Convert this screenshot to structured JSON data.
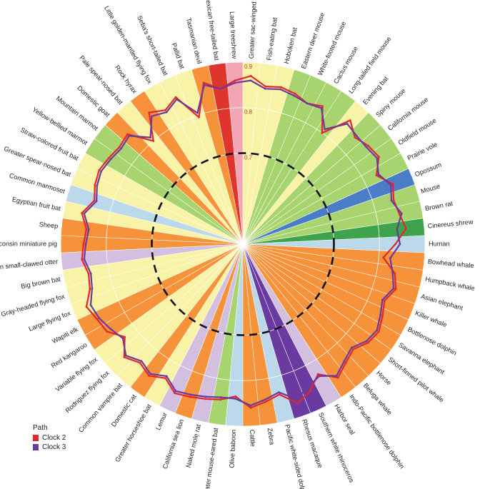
{
  "chart_data": {
    "type": "radar",
    "title": "",
    "r_axis": {
      "min": 0.5,
      "max": 0.9,
      "ticks": [
        0.7,
        0.8,
        0.9
      ],
      "tick_labels": [
        "0.7",
        "0.8",
        "0.9"
      ]
    },
    "reference_ring": 0.7,
    "legend": {
      "title": "Path",
      "placement": "bottom-left",
      "entries": [
        {
          "label": "Clock 2",
          "color": "#e3262d"
        },
        {
          "label": "Clock 3",
          "color": "#6a3a9c"
        }
      ]
    },
    "colors": {
      "orange": "#f5923a",
      "yellow": "#f8f3a6",
      "green": "#a8d46f",
      "lightblue": "#bcd9ec",
      "lavender": "#d3bfe0",
      "purple": "#6a3aa0",
      "red": "#e0352d",
      "pink": "#f2a6b4",
      "darkgreen": "#3fa34d",
      "blue": "#4a7cc7"
    },
    "categories": [
      "Human",
      "Cinereus shrew",
      "Brown rat",
      "Mouse",
      "Opossum",
      "Prairie vole",
      "Oldfield mouse",
      "California mouse",
      "Spiny mouse",
      "Evening bat",
      "Long-tailed field mouse",
      "Cactus mouse",
      "White-footed mouse",
      "Eastern deer mouse",
      "Hoboken bat",
      "Fish-eating bat",
      "Greater sac-winged bat",
      "Large treeshrew",
      "Mexican free-tailed bat",
      "Tasmanian devil",
      "Pallid bat",
      "Seba's short-tailed bat",
      "Little golden-mantled flying fox",
      "Rock hyrax",
      "Pale spear-nosed bat",
      "Domestic goat",
      "Mountain marmot",
      "Yellow-bellied marmot",
      "Straw-colored fruit bat",
      "Greater spear-nosed bat",
      "Common marmoset",
      "Egyptian fruit bat",
      "Sheep",
      "Wisconsin miniature pig",
      "Asian small-clawed otter",
      "Big brown bat",
      "Gray-headed flying fox",
      "Large flying fox",
      "Wapiti elk",
      "Red kangaroo",
      "Variable flying fox",
      "Rodriguez flying fox",
      "Common vampire bat",
      "Domestic cat",
      "Greater horseshoe bat",
      "Lemur",
      "California sea lion",
      "Naked mole rat",
      "Greater mouse-eared bat",
      "Olive baboon",
      "Cattle",
      "Zebra",
      "Pacific white-sided dolphin",
      "Rhesus macaque",
      "Southern white rhinoceros",
      "Harbor seal",
      "Indo-Pacific bottlenose dolphin",
      "Beluga whale",
      "Horse",
      "Short-finned pilot whale",
      "Savanna elephant",
      "Bottlenose dolphin",
      "Killer whale",
      "Asian elephant",
      "Humpback whale",
      "Bowhead whale"
    ],
    "sector_colors": [
      "lightblue",
      "darkgreen",
      "green",
      "green",
      "blue",
      "green",
      "green",
      "green",
      "green",
      "yellow",
      "green",
      "green",
      "green",
      "green",
      "yellow",
      "yellow",
      "yellow",
      "pink",
      "red",
      "orange",
      "yellow",
      "yellow",
      "yellow",
      "orange",
      "yellow",
      "orange",
      "green",
      "green",
      "yellow",
      "yellow",
      "lightblue",
      "yellow",
      "orange",
      "orange",
      "lavender",
      "yellow",
      "yellow",
      "yellow",
      "orange",
      "orange",
      "yellow",
      "yellow",
      "yellow",
      "orange",
      "yellow",
      "lavender",
      "orange",
      "lavender",
      "green",
      "lightblue",
      "orange",
      "orange",
      "lightblue",
      "purple",
      "purple",
      "lavender",
      "orange",
      "orange",
      "orange",
      "orange",
      "orange",
      "orange",
      "orange",
      "orange",
      "orange",
      "orange"
    ],
    "series": [
      {
        "name": "Clock 2",
        "values": [
          0.835,
          0.86,
          0.85,
          0.845,
          0.855,
          0.83,
          0.855,
          0.85,
          0.84,
          0.86,
          0.8,
          0.85,
          0.84,
          0.85,
          0.855,
          0.85,
          0.87,
          0.86,
          0.845,
          0.865,
          0.795,
          0.855,
          0.84,
          0.855,
          0.8,
          0.85,
          0.845,
          0.85,
          0.855,
          0.85,
          0.84,
          0.86,
          0.845,
          0.85,
          0.855,
          0.845,
          0.85,
          0.87,
          0.86,
          0.855,
          0.83,
          0.86,
          0.845,
          0.855,
          0.84,
          0.86,
          0.855,
          0.85,
          0.845,
          0.835,
          0.86,
          0.85,
          0.84,
          0.87,
          0.855,
          0.83,
          0.86,
          0.845,
          0.835,
          0.85,
          0.855,
          0.845,
          0.835,
          0.85,
          0.84,
          0.81
        ]
      },
      {
        "name": "Clock 3",
        "values": [
          0.845,
          0.84,
          0.855,
          0.84,
          0.85,
          0.835,
          0.85,
          0.845,
          0.845,
          0.85,
          0.81,
          0.845,
          0.84,
          0.845,
          0.85,
          0.845,
          0.86,
          0.855,
          0.845,
          0.86,
          0.805,
          0.85,
          0.835,
          0.845,
          0.81,
          0.845,
          0.84,
          0.845,
          0.85,
          0.845,
          0.835,
          0.855,
          0.84,
          0.845,
          0.85,
          0.84,
          0.845,
          0.86,
          0.855,
          0.845,
          0.835,
          0.855,
          0.84,
          0.85,
          0.835,
          0.855,
          0.85,
          0.845,
          0.84,
          0.84,
          0.855,
          0.845,
          0.835,
          0.86,
          0.845,
          0.835,
          0.855,
          0.84,
          0.83,
          0.845,
          0.85,
          0.84,
          0.83,
          0.845,
          0.835,
          0.825
        ]
      }
    ]
  }
}
